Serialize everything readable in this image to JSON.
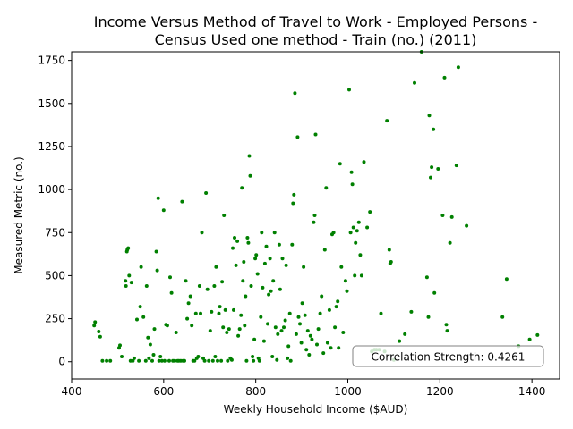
{
  "chart_data": {
    "type": "scatter",
    "title_lines": [
      "Income Versus Method of Travel to Work - Employed Persons -",
      "Census Used one method - Train (no.) (2011)"
    ],
    "xlabel": "Weekly Household Income ($AUD)",
    "ylabel": "Measured Metric (no.)",
    "xlim": [
      400,
      1460
    ],
    "ylim": [
      -100,
      1800
    ],
    "xticks": [
      400,
      600,
      800,
      1000,
      1200,
      1400
    ],
    "yticks": [
      0,
      250,
      500,
      750,
      1000,
      1250,
      1500,
      1750
    ],
    "grid": false,
    "marker_color": "#008000",
    "annotation": "Correlation Strength: 0.4261",
    "series": [
      {
        "points": [
          [
            449,
            210
          ],
          [
            451,
            230
          ],
          [
            459,
            175
          ],
          [
            462,
            145
          ],
          [
            467,
            5
          ],
          [
            476,
            5
          ],
          [
            484,
            5
          ],
          [
            503,
            80
          ],
          [
            505,
            95
          ],
          [
            509,
            30
          ],
          [
            517,
            470
          ],
          [
            518,
            440
          ],
          [
            520,
            640
          ],
          [
            521,
            650
          ],
          [
            523,
            660
          ],
          [
            525,
            500
          ],
          [
            528,
            5
          ],
          [
            530,
            460
          ],
          [
            533,
            5
          ],
          [
            536,
            20
          ],
          [
            542,
            245
          ],
          [
            546,
            5
          ],
          [
            549,
            320
          ],
          [
            551,
            550
          ],
          [
            556,
            260
          ],
          [
            561,
            5
          ],
          [
            563,
            440
          ],
          [
            566,
            140
          ],
          [
            568,
            20
          ],
          [
            571,
            100
          ],
          [
            575,
            5
          ],
          [
            578,
            40
          ],
          [
            580,
            190
          ],
          [
            584,
            640
          ],
          [
            586,
            530
          ],
          [
            588,
            950
          ],
          [
            590,
            5
          ],
          [
            593,
            30
          ],
          [
            596,
            5
          ],
          [
            600,
            880
          ],
          [
            602,
            5
          ],
          [
            605,
            215
          ],
          [
            608,
            210
          ],
          [
            612,
            5
          ],
          [
            614,
            490
          ],
          [
            617,
            400
          ],
          [
            620,
            5
          ],
          [
            624,
            5
          ],
          [
            627,
            170
          ],
          [
            630,
            5
          ],
          [
            633,
            5
          ],
          [
            637,
            5
          ],
          [
            640,
            930
          ],
          [
            642,
            5
          ],
          [
            645,
            5
          ],
          [
            648,
            470
          ],
          [
            651,
            250
          ],
          [
            654,
            340
          ],
          [
            658,
            380
          ],
          [
            661,
            210
          ],
          [
            664,
            5
          ],
          [
            667,
            5
          ],
          [
            670,
            280
          ],
          [
            672,
            20
          ],
          [
            675,
            30
          ],
          [
            678,
            440
          ],
          [
            680,
            280
          ],
          [
            683,
            750
          ],
          [
            686,
            20
          ],
          [
            689,
            5
          ],
          [
            692,
            980
          ],
          [
            695,
            420
          ],
          [
            698,
            5
          ],
          [
            701,
            180
          ],
          [
            704,
            290
          ],
          [
            707,
            5
          ],
          [
            710,
            440
          ],
          [
            712,
            30
          ],
          [
            714,
            550
          ],
          [
            717,
            5
          ],
          [
            720,
            280
          ],
          [
            722,
            320
          ],
          [
            725,
            5
          ],
          [
            727,
            465
          ],
          [
            729,
            200
          ],
          [
            731,
            850
          ],
          [
            734,
            300
          ],
          [
            737,
            170
          ],
          [
            739,
            5
          ],
          [
            742,
            190
          ],
          [
            745,
            20
          ],
          [
            748,
            10
          ],
          [
            750,
            660
          ],
          [
            752,
            300
          ],
          [
            754,
            720
          ],
          [
            757,
            560
          ],
          [
            760,
            700
          ],
          [
            762,
            150
          ],
          [
            765,
            190
          ],
          [
            768,
            270
          ],
          [
            770,
            1010
          ],
          [
            772,
            470
          ],
          [
            774,
            580
          ],
          [
            776,
            210
          ],
          [
            778,
            380
          ],
          [
            780,
            5
          ],
          [
            782,
            720
          ],
          [
            784,
            690
          ],
          [
            786,
            1195
          ],
          [
            788,
            1080
          ],
          [
            790,
            440
          ],
          [
            793,
            30
          ],
          [
            795,
            5
          ],
          [
            797,
            130
          ],
          [
            799,
            600
          ],
          [
            801,
            620
          ],
          [
            804,
            510
          ],
          [
            806,
            20
          ],
          [
            808,
            5
          ],
          [
            811,
            260
          ],
          [
            813,
            750
          ],
          [
            815,
            430
          ],
          [
            818,
            120
          ],
          [
            820,
            570
          ],
          [
            823,
            670
          ],
          [
            826,
            220
          ],
          [
            828,
            390
          ],
          [
            831,
            600
          ],
          [
            833,
            410
          ],
          [
            836,
            30
          ],
          [
            838,
            470
          ],
          [
            841,
            750
          ],
          [
            843,
            200
          ],
          [
            846,
            10
          ],
          [
            848,
            160
          ],
          [
            851,
            680
          ],
          [
            853,
            420
          ],
          [
            856,
            180
          ],
          [
            858,
            600
          ],
          [
            861,
            200
          ],
          [
            864,
            240
          ],
          [
            866,
            560
          ],
          [
            869,
            20
          ],
          [
            871,
            90
          ],
          [
            874,
            280
          ],
          [
            876,
            5
          ],
          [
            879,
            680
          ],
          [
            881,
            920
          ],
          [
            883,
            970
          ],
          [
            885,
            1560
          ],
          [
            888,
            160
          ],
          [
            891,
            1305
          ],
          [
            893,
            260
          ],
          [
            896,
            220
          ],
          [
            899,
            110
          ],
          [
            901,
            340
          ],
          [
            904,
            550
          ],
          [
            907,
            270
          ],
          [
            910,
            70
          ],
          [
            913,
            180
          ],
          [
            916,
            40
          ],
          [
            919,
            150
          ],
          [
            922,
            130
          ],
          [
            926,
            810
          ],
          [
            928,
            850
          ],
          [
            930,
            1320
          ],
          [
            933,
            100
          ],
          [
            936,
            190
          ],
          [
            940,
            280
          ],
          [
            943,
            380
          ],
          [
            947,
            50
          ],
          [
            950,
            650
          ],
          [
            953,
            1010
          ],
          [
            956,
            110
          ],
          [
            960,
            300
          ],
          [
            963,
            80
          ],
          [
            966,
            740
          ],
          [
            969,
            750
          ],
          [
            972,
            200
          ],
          [
            975,
            320
          ],
          [
            978,
            350
          ],
          [
            980,
            80
          ],
          [
            983,
            1150
          ],
          [
            986,
            550
          ],
          [
            990,
            170
          ],
          [
            995,
            470
          ],
          [
            998,
            410
          ],
          [
            1003,
            1580
          ],
          [
            1006,
            750
          ],
          [
            1008,
            1100
          ],
          [
            1010,
            1030
          ],
          [
            1012,
            780
          ],
          [
            1015,
            500
          ],
          [
            1017,
            690
          ],
          [
            1020,
            760
          ],
          [
            1024,
            810
          ],
          [
            1027,
            620
          ],
          [
            1030,
            500
          ],
          [
            1035,
            1160
          ],
          [
            1042,
            780
          ],
          [
            1048,
            870
          ],
          [
            1052,
            60
          ],
          [
            1058,
            70
          ],
          [
            1062,
            70
          ],
          [
            1068,
            70
          ],
          [
            1072,
            280
          ],
          [
            1085,
            1400
          ],
          [
            1090,
            650
          ],
          [
            1092,
            570
          ],
          [
            1094,
            580
          ],
          [
            1112,
            120
          ],
          [
            1124,
            160
          ],
          [
            1138,
            290
          ],
          [
            1145,
            1620
          ],
          [
            1172,
            490
          ],
          [
            1175,
            260
          ],
          [
            1177,
            1430
          ],
          [
            1180,
            1070
          ],
          [
            1182,
            1130
          ],
          [
            1186,
            1350
          ],
          [
            1188,
            400
          ],
          [
            1196,
            1120
          ],
          [
            1206,
            850
          ],
          [
            1210,
            1650
          ],
          [
            1214,
            215
          ],
          [
            1216,
            180
          ],
          [
            1222,
            690
          ],
          [
            1226,
            840
          ],
          [
            1236,
            1140
          ],
          [
            1240,
            1710
          ],
          [
            1258,
            790
          ],
          [
            1336,
            260
          ],
          [
            1345,
            480
          ],
          [
            1371,
            90
          ],
          [
            1395,
            130
          ],
          [
            1412,
            155
          ],
          [
            1080,
            60
          ],
          [
            1100,
            10
          ],
          [
            1160,
            1800
          ]
        ]
      }
    ]
  }
}
